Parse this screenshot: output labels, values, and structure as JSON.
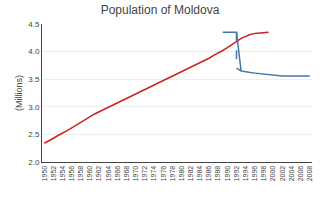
{
  "chart_data": {
    "type": "line",
    "title": "Population of Moldova",
    "ylabel": "(Millions)",
    "series": [
      {
        "color": "#cc2222",
        "line_style": "solid",
        "x": [
          1950,
          1951,
          1952,
          1953,
          1954,
          1955,
          1956,
          1957,
          1958,
          1959,
          1960,
          1961,
          1962,
          1963,
          1964,
          1965,
          1966,
          1967,
          1968,
          1969,
          1970,
          1971,
          1972,
          1973,
          1974,
          1975,
          1976,
          1977,
          1978,
          1979,
          1980,
          1981,
          1982,
          1983,
          1984,
          1985,
          1986,
          1987,
          1988,
          1989,
          1990,
          1991,
          1992,
          1993,
          1994,
          1995,
          1996,
          1997,
          1998,
          1999
        ],
        "values": [
          2.34,
          2.38,
          2.43,
          2.48,
          2.52,
          2.57,
          2.62,
          2.67,
          2.73,
          2.78,
          2.83,
          2.87,
          2.91,
          2.95,
          2.99,
          3.03,
          3.07,
          3.11,
          3.15,
          3.19,
          3.23,
          3.27,
          3.31,
          3.35,
          3.39,
          3.43,
          3.47,
          3.51,
          3.55,
          3.59,
          3.63,
          3.67,
          3.71,
          3.76,
          3.8,
          3.84,
          3.88,
          3.93,
          3.97,
          4.02,
          4.07,
          4.12,
          4.18,
          4.24,
          4.28,
          4.31,
          4.33,
          4.34,
          4.35,
          4.35
        ]
      },
      {
        "color": "#4477aa",
        "line_style": "solid",
        "x": [
          1989,
          1990,
          1991,
          1992,
          1993,
          1994,
          1995,
          1996,
          1997,
          1998,
          1999,
          2000,
          2001,
          2002,
          2003,
          2004,
          2005,
          2006,
          2007,
          2008
        ],
        "values": [
          4.35,
          4.35,
          4.35,
          4.35,
          3.65,
          3.63,
          3.62,
          3.61,
          3.6,
          3.59,
          3.58,
          3.57,
          3.57,
          3.56,
          3.56,
          3.56,
          3.56,
          3.56,
          3.56,
          3.56
        ]
      },
      {
        "color": "#4477aa",
        "line_style": "dashed",
        "x": [
          1992,
          1992,
          1992,
          1992,
          1992,
          1992,
          1992,
          1992,
          1993
        ],
        "values": [
          4.35,
          4.3,
          4.2,
          4.1,
          4.0,
          3.9,
          3.8,
          3.7,
          3.65
        ]
      }
    ],
    "xlim": [
      1949.5,
      2008.5
    ],
    "xticks": [
      1950,
      1952,
      1954,
      1956,
      1958,
      1960,
      1962,
      1964,
      1966,
      1968,
      1970,
      1972,
      1974,
      1976,
      1978,
      1980,
      1982,
      1984,
      1986,
      1988,
      1990,
      1992,
      1994,
      1996,
      1998,
      2000,
      2002,
      2004,
      2006,
      2008
    ],
    "ylim": [
      2.0,
      4.5
    ],
    "yticks": [
      {
        "value": 2.0,
        "label": "2.0"
      },
      2.5,
      {
        "value": 3.0,
        "label": "3.0"
      },
      3.5,
      {
        "value": 4.0,
        "label": "4.0"
      },
      4.5
    ],
    "grid": true
  }
}
